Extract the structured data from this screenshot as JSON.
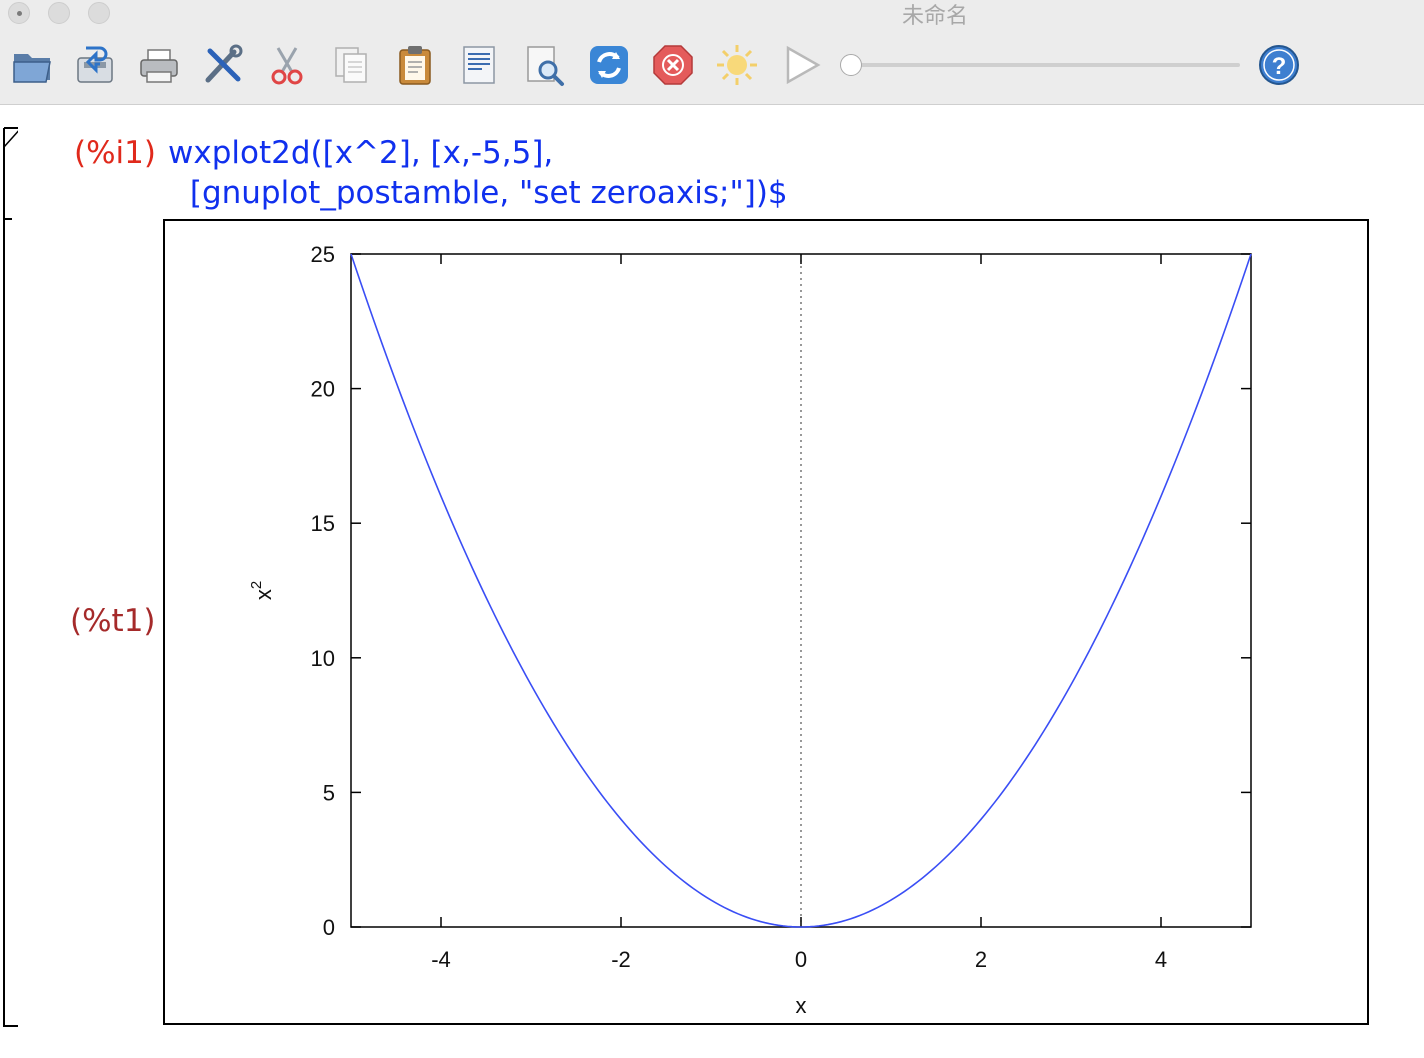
{
  "window": {
    "title": "未命名"
  },
  "toolbar": {
    "buttons": [
      {
        "name": "open-button",
        "icon": "open-folder-icon"
      },
      {
        "name": "save-button",
        "icon": "save-icon"
      },
      {
        "name": "print-button",
        "icon": "printer-icon"
      },
      {
        "name": "configure-button",
        "icon": "tools-icon"
      },
      {
        "name": "cut-button",
        "icon": "scissors-icon"
      },
      {
        "name": "copy-button",
        "icon": "copy-icon"
      },
      {
        "name": "paste-button",
        "icon": "clipboard-icon"
      },
      {
        "name": "select-all-button",
        "icon": "document-icon"
      },
      {
        "name": "find-button",
        "icon": "find-icon"
      },
      {
        "name": "restart-button",
        "icon": "refresh-icon"
      },
      {
        "name": "stop-button",
        "icon": "stop-icon"
      },
      {
        "name": "animation-start-button",
        "icon": "sun-icon"
      },
      {
        "name": "animation-play-button",
        "icon": "play-icon"
      },
      {
        "name": "help-button",
        "icon": "help-icon"
      }
    ],
    "animation_slider": {
      "value": 0
    }
  },
  "worksheet": {
    "input_label": "(%i1)",
    "code_line_1": "wxplot2d([x^2], [x,-5,5],",
    "code_line_2": " [gnuplot_postamble, \"set zeroaxis;\"])$",
    "output_label": "(%t1)"
  },
  "colors": {
    "input_label": "#e0291b",
    "output_label": "#a52a2a",
    "code": "#1030ee",
    "curve": "#3a4ef5"
  },
  "chart_data": {
    "type": "line",
    "function": "x^2",
    "xlabel": "x",
    "ylabel": "x",
    "ylabel_superscript": "2",
    "xlim": [
      -5,
      5
    ],
    "ylim": [
      0,
      25
    ],
    "x_ticks": [
      -4,
      -2,
      0,
      2,
      4
    ],
    "y_ticks": [
      0,
      5,
      10,
      15,
      20,
      25
    ],
    "zero_axis": true,
    "grid": false,
    "series": [
      {
        "x": [
          -5,
          -4.5,
          -4,
          -3.5,
          -3,
          -2.5,
          -2,
          -1.5,
          -1,
          -0.5,
          0,
          0.5,
          1,
          1.5,
          2,
          2.5,
          3,
          3.5,
          4,
          4.5,
          5
        ],
        "y": [
          25,
          20.25,
          16,
          12.25,
          9,
          6.25,
          4,
          2.25,
          1,
          0.25,
          0,
          0.25,
          1,
          2.25,
          4,
          6.25,
          9,
          12.25,
          16,
          20.25,
          25
        ]
      }
    ]
  }
}
